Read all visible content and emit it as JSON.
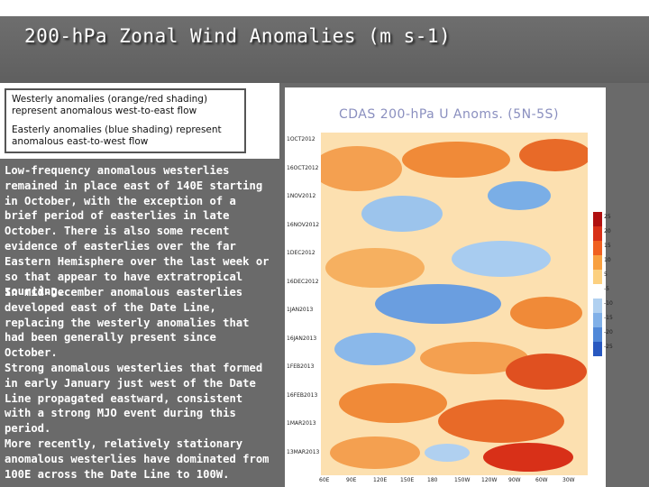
{
  "slide": {
    "title": "200-hPa Zonal Wind Anomalies (m s-1)",
    "legend": {
      "westerly": "Westerly anomalies (orange/red shading) represent anomalous west-to-east flow",
      "easterly": "Easterly anomalies (blue shading) represent anomalous east-to-west flow"
    },
    "paragraphs": [
      "Low-frequency anomalous westerlies remained in place east of 140E starting in October, with the exception of a brief period of easterlies in late October. There is also some recent evidence of easterlies over the far Eastern Hemisphere over the last week or so that appear to have extratropical sourcing.",
      "In mid-December anomalous easterlies developed east of the Date Line, replacing the westerly anomalies that had been generally present since October.",
      "Strong anomalous westerlies that formed in early January just west of the Date Line propagated eastward, consistent with a strong MJO event during this period.",
      "More recently, relatively stationary anomalous westerlies have dominated from 100E across the Date Line to 100W."
    ]
  },
  "figure": {
    "title": "CDAS 200-hPa U Anoms. (5N-5S)",
    "y_labels": [
      "1OCT2012",
      "16OCT2012",
      "1NOV2012",
      "16NOV2012",
      "1DEC2012",
      "16DEC2012",
      "1JAN2013",
      "16JAN2013",
      "1FEB2013",
      "16FEB2013",
      "1MAR2013",
      "13MAR2013"
    ],
    "x_labels": [
      "60E",
      "90E",
      "120E",
      "150E",
      "180",
      "150W",
      "120W",
      "90W",
      "60W",
      "30W"
    ],
    "colorbar_labels": [
      "25",
      "20",
      "15",
      "10",
      "5",
      "-5",
      "-10",
      "-15",
      "-20",
      "-25"
    ],
    "colors": [
      "#b01010",
      "#d83018",
      "#f06020",
      "#f8a040",
      "#fcd080",
      "#ffffff",
      "#b0d0f0",
      "#80b0e8",
      "#5088d8",
      "#2858c0"
    ]
  }
}
